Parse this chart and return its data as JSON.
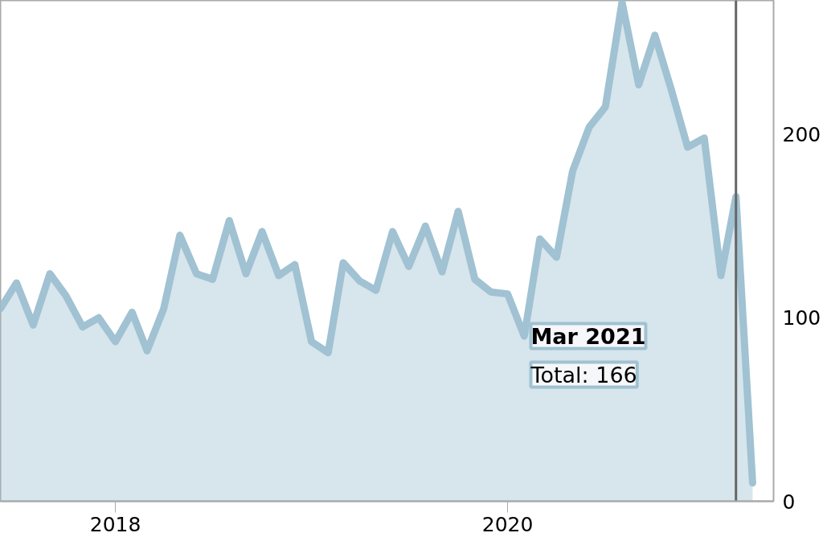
{
  "chart_data": {
    "type": "area",
    "x": [
      "2017-06",
      "2017-07",
      "2017-08",
      "2017-09",
      "2017-10",
      "2017-11",
      "2017-12",
      "2018-01",
      "2018-02",
      "2018-03",
      "2018-04",
      "2018-05",
      "2018-06",
      "2018-07",
      "2018-08",
      "2018-09",
      "2018-10",
      "2018-11",
      "2018-12",
      "2019-01",
      "2019-02",
      "2019-03",
      "2019-04",
      "2019-05",
      "2019-06",
      "2019-07",
      "2019-08",
      "2019-09",
      "2019-10",
      "2019-11",
      "2019-12",
      "2020-01",
      "2020-02",
      "2020-03",
      "2020-04",
      "2020-05",
      "2020-06",
      "2020-07",
      "2020-08",
      "2020-09",
      "2020-10",
      "2020-11",
      "2020-12",
      "2021-01",
      "2021-02",
      "2021-03",
      "2021-04"
    ],
    "series": [
      {
        "color": "#a0c2d2",
        "values": [
          105,
          119,
          96,
          124,
          112,
          95,
          100,
          87,
          103,
          82,
          105,
          145,
          124,
          121,
          153,
          124,
          147,
          123,
          129,
          87,
          81,
          130,
          120,
          115,
          147,
          128,
          150,
          125,
          158,
          121,
          114,
          113,
          90,
          143,
          133,
          180,
          204,
          215,
          272,
          227,
          254,
          224,
          193,
          198,
          123,
          166,
          10
        ]
      }
    ],
    "xlim": [
      "2017-06-01",
      "2021-05-10"
    ],
    "xticks": [
      {
        "value": "2018-01-01",
        "label": "2018"
      },
      {
        "value": "2020-01-01",
        "label": "2020"
      }
    ],
    "ylim": [
      0,
      273
    ],
    "yticks": [
      0,
      100,
      200
    ],
    "grid": false,
    "ref_lines": [
      {
        "axis": "x",
        "value": "2021-03",
        "color": "#666666"
      }
    ],
    "annotations": [
      "Mar 2021\nTotal: 166"
    ]
  }
}
